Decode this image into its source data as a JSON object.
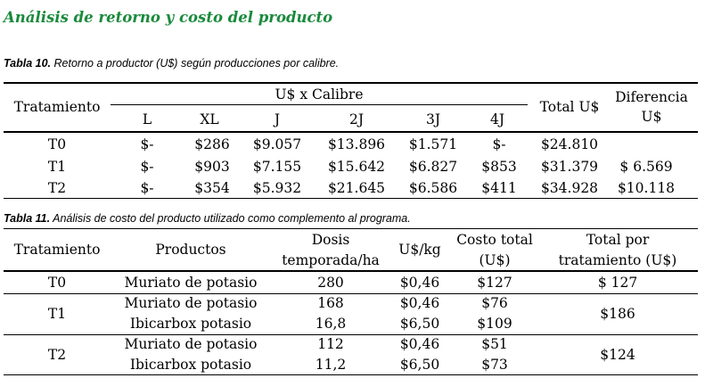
{
  "heading": "Análisis de retorno y costo del producto",
  "table10": {
    "caption_bold": "Tabla 10.",
    "caption_rest": " Retorno a productor (U$) según producciones por calibre.",
    "headers": {
      "tratamiento": "Tratamiento",
      "group": "U$ x Calibre",
      "calibres": [
        "L",
        "XL",
        "J",
        "2J",
        "3J",
        "4J"
      ],
      "total": "Total U$",
      "diferencia_1": "Diferencia",
      "diferencia_2": "U$"
    },
    "rows": [
      {
        "trat": "T0",
        "vals": [
          "$-",
          "$286",
          "$9.057",
          "$13.896",
          "$1.571",
          "$-"
        ],
        "total": "$24.810",
        "dif": ""
      },
      {
        "trat": "T1",
        "vals": [
          "$-",
          "$903",
          "$7.155",
          "$15.642",
          "$6.827",
          "$853"
        ],
        "total": "$31.379",
        "dif": "$ 6.569"
      },
      {
        "trat": "T2",
        "vals": [
          "$-",
          "$354",
          "$5.932",
          "$21.645",
          "$6.586",
          "$411"
        ],
        "total": "$34.928",
        "dif": "$10.118"
      }
    ]
  },
  "table11": {
    "caption_bold": "Tabla 11.",
    "caption_rest": " Análisis de costo del producto utilizado como complemento al programa.",
    "headers": {
      "tratamiento": "Tratamiento",
      "productos": "Productos",
      "dosis_1": "Dosis",
      "dosis_2": "temporada/ha",
      "uskg": "U$/kg",
      "costo_1": "Costo total",
      "costo_2": "(U$)",
      "totalpor_1": "Total por",
      "totalpor_2": "tratamiento (U$)"
    },
    "groups": [
      {
        "trat": "T0",
        "total": "$ 127",
        "items": [
          {
            "producto": "Muriato de potasio",
            "dosis": "280",
            "uskg": "$0,46",
            "costo": "$127"
          }
        ]
      },
      {
        "trat": "T1",
        "total": "$186",
        "items": [
          {
            "producto": "Muriato de potasio",
            "dosis": "168",
            "uskg": "$0,46",
            "costo": "$76"
          },
          {
            "producto": "Ibicarbox potasio",
            "dosis": "16,8",
            "uskg": "$6,50",
            "costo": "$109"
          }
        ]
      },
      {
        "trat": "T2",
        "total": "$124",
        "items": [
          {
            "producto": "Muriato de potasio",
            "dosis": "112",
            "uskg": "$0,46",
            "costo": "$51"
          },
          {
            "producto": "Ibicarbox potasio",
            "dosis": "11,2",
            "uskg": "$6,50",
            "costo": "$73"
          }
        ]
      }
    ]
  }
}
